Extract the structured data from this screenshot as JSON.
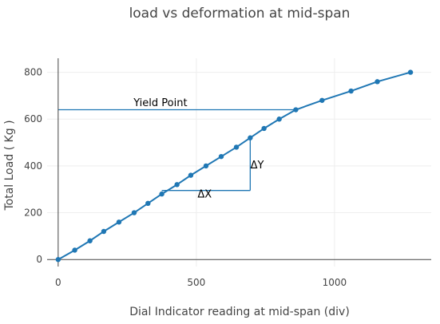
{
  "chart_data": {
    "type": "line",
    "title": "load vs deformation at mid-span",
    "xlabel": "Dial Indicator reading at mid-span (div)",
    "ylabel": "Total Load ( Kg )",
    "xlim": [
      -40,
      1350
    ],
    "ylim": [
      -30,
      860
    ],
    "x_ticks": [
      0,
      500,
      1000
    ],
    "y_ticks": [
      0,
      200,
      400,
      600,
      800
    ],
    "grid": true,
    "legend": "none",
    "series": [
      {
        "color": "#1f77b4",
        "x": [
          0,
          60,
          115,
          165,
          220,
          275,
          325,
          375,
          430,
          480,
          535,
          590,
          645,
          695,
          745,
          800,
          860,
          955,
          1060,
          1155,
          1275
        ],
        "y": [
          0,
          40,
          80,
          120,
          160,
          200,
          240,
          280,
          320,
          360,
          400,
          440,
          480,
          520,
          560,
          600,
          640,
          680,
          720,
          760,
          800
        ]
      }
    ],
    "annotations": [
      {
        "text": "Yield Point",
        "x": 370,
        "y": 655
      },
      {
        "text": "ΔY",
        "x": 720,
        "y": 390
      },
      {
        "text": "ΔX",
        "x": 530,
        "y": 265
      }
    ],
    "reference_lines": [
      {
        "name": "yield-line",
        "x": [
          0,
          860
        ],
        "y": [
          640,
          640
        ]
      },
      {
        "name": "delta-x-line",
        "x": [
          375,
          695
        ],
        "y": [
          295,
          295
        ]
      },
      {
        "name": "delta-y-line",
        "x": [
          695,
          695
        ],
        "y": [
          295,
          520
        ]
      }
    ],
    "colors": {
      "line": "#1f77b4",
      "grid": "#eeeeee",
      "axis": "#444444",
      "text": "#444444"
    }
  }
}
